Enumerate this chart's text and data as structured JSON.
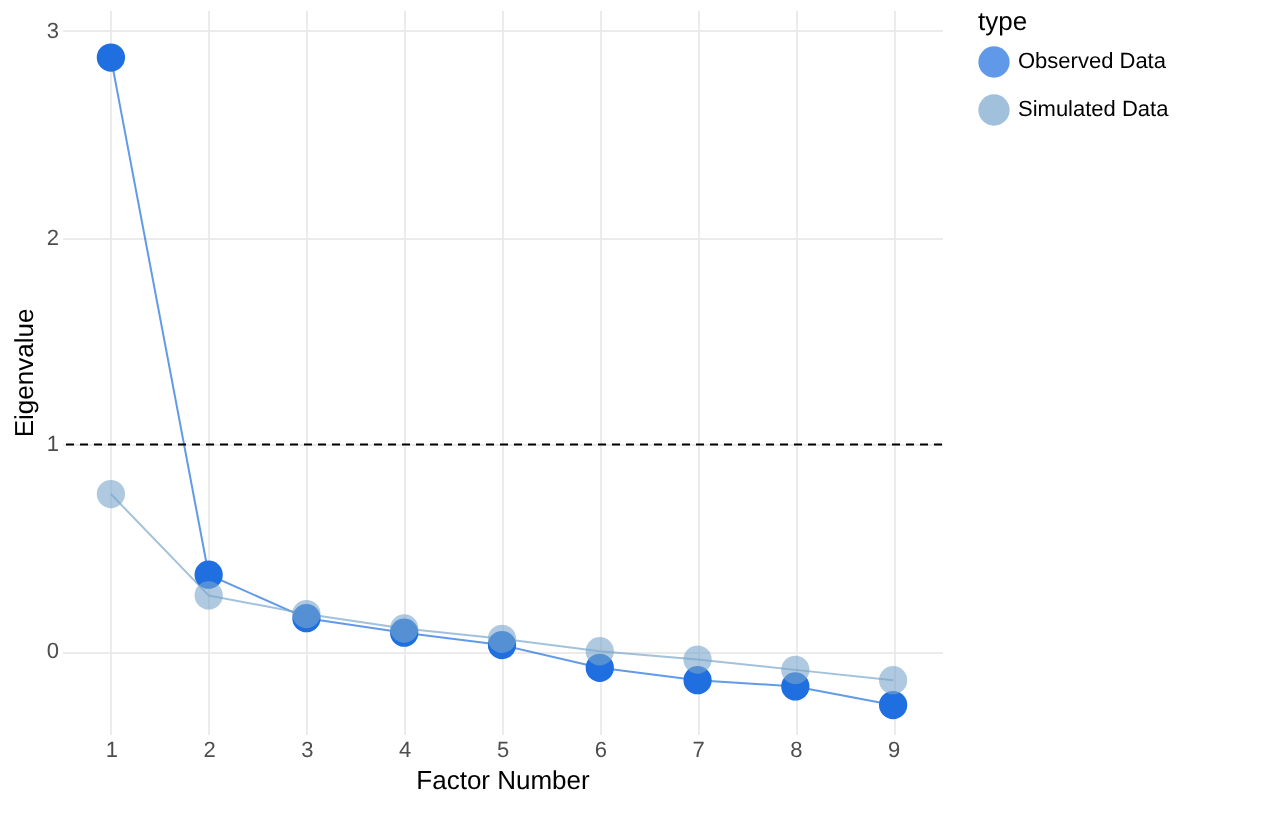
{
  "chart_data": {
    "type": "line",
    "xlabel": "Factor Number",
    "ylabel": "Eigenvalue",
    "legend_title": "type",
    "x": [
      1,
      2,
      3,
      4,
      5,
      6,
      7,
      8,
      9
    ],
    "series": [
      {
        "name": "Observed Data",
        "color": "#1f6fe0",
        "values": [
          2.87,
          0.37,
          0.16,
          0.09,
          0.03,
          -0.08,
          -0.14,
          -0.17,
          -0.26
        ]
      },
      {
        "name": "Simulated Data",
        "color": "#7aa6cc",
        "values": [
          0.76,
          0.27,
          0.18,
          0.11,
          0.06,
          0.0,
          -0.04,
          -0.09,
          -0.14
        ]
      }
    ],
    "xlim": [
      0.5,
      9.5
    ],
    "xticks": [
      1,
      2,
      3,
      4,
      5,
      6,
      7,
      8,
      9
    ],
    "ylim": [
      -0.4,
      3.1
    ],
    "yticks": [
      0,
      1,
      2,
      3
    ],
    "ref_lines": [
      {
        "axis": "y",
        "value": 1,
        "color": "#000000",
        "line_style": "dashed"
      }
    ],
    "grid": true,
    "legend": "right",
    "marker": "circle",
    "line_style": "solid"
  }
}
